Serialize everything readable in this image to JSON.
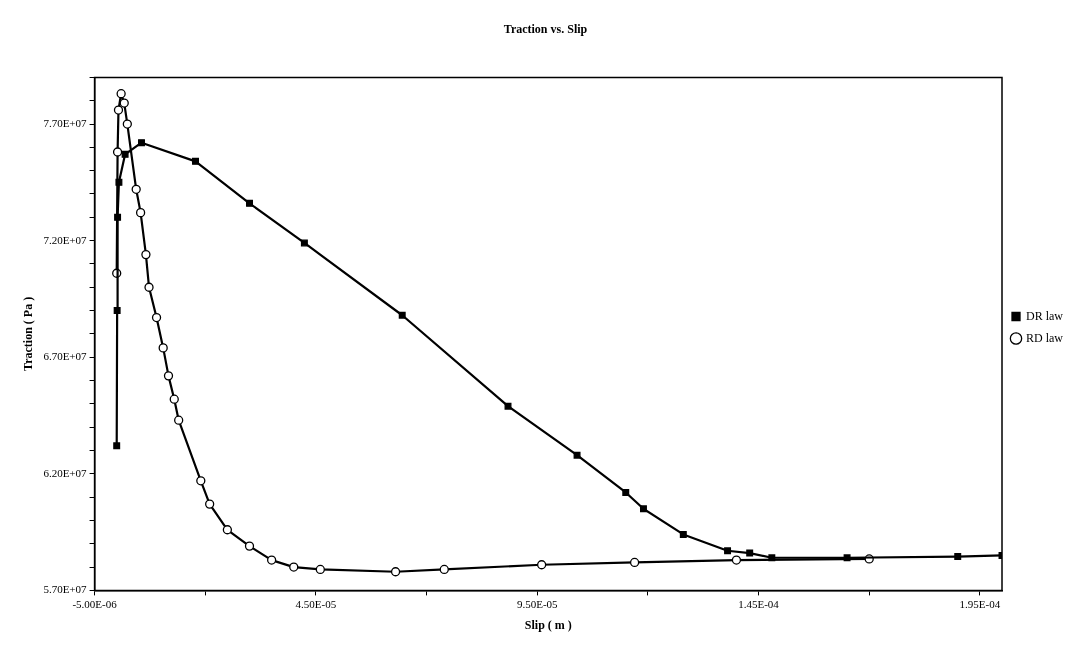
{
  "chart_data": {
    "type": "line",
    "title": "Traction vs. Slip",
    "xlabel": "Slip ( m )",
    "ylabel": "Traction ( Pa )",
    "xlim": [
      -5e-06,
      0.0002
    ],
    "xticks": [
      {
        "value": -5e-06,
        "label": "-5.00E-06"
      },
      {
        "value": 2e-05,
        "label": null
      },
      {
        "value": 4.5e-05,
        "label": "4.50E-05"
      },
      {
        "value": 7e-05,
        "label": null
      },
      {
        "value": 9.5e-05,
        "label": "9.50E-05"
      },
      {
        "value": 0.00012,
        "label": null
      },
      {
        "value": 0.000145,
        "label": "1.45E-04"
      },
      {
        "value": 0.00017,
        "label": null
      },
      {
        "value": 0.000195,
        "label": "1.95E-04"
      }
    ],
    "ylim": [
      57000000.0,
      79000000.0
    ],
    "yticks": [
      {
        "value": 57000000.0,
        "label": "5.70E+07"
      },
      {
        "value": 58000000.0,
        "label": null
      },
      {
        "value": 59000000.0,
        "label": null
      },
      {
        "value": 60000000.0,
        "label": null
      },
      {
        "value": 61000000.0,
        "label": null
      },
      {
        "value": 62000000.0,
        "label": "6.20E+07"
      },
      {
        "value": 63000000.0,
        "label": null
      },
      {
        "value": 64000000.0,
        "label": null
      },
      {
        "value": 65000000.0,
        "label": null
      },
      {
        "value": 66000000.0,
        "label": null
      },
      {
        "value": 67000000.0,
        "label": "6.70E+07"
      },
      {
        "value": 68000000.0,
        "label": null
      },
      {
        "value": 69000000.0,
        "label": null
      },
      {
        "value": 70000000.0,
        "label": null
      },
      {
        "value": 71000000.0,
        "label": null
      },
      {
        "value": 72000000.0,
        "label": "7.20E+07"
      },
      {
        "value": 73000000.0,
        "label": null
      },
      {
        "value": 74000000.0,
        "label": null
      },
      {
        "value": 75000000.0,
        "label": null
      },
      {
        "value": 76000000.0,
        "label": null
      },
      {
        "value": 77000000.0,
        "label": "7.70E+07"
      },
      {
        "value": 78000000.0,
        "label": null
      },
      {
        "value": 79000000.0,
        "label": null
      }
    ],
    "grid": false,
    "legend": "right",
    "line_style": "solid",
    "series": [
      {
        "name": "DR law",
        "color": "#000000",
        "marker": "square",
        "x": [
          0,
          1e-07,
          2e-07,
          5e-07,
          1.9e-06,
          5.6e-06,
          1.78e-05,
          3e-05,
          4.24e-05,
          6.45e-05,
          8.84e-05,
          0.000104,
          0.000115,
          0.000119,
          0.000128,
          0.000138,
          0.000143,
          0.000148,
          0.000165,
          0.00019,
          0.0002
        ],
        "values": [
          63200000.0,
          69000000.0,
          73000000.0,
          74500000.0,
          75700000.0,
          76200000.0,
          75400000.0,
          73600000.0,
          71900000.0,
          68800000.0,
          64900000.0,
          62800000.0,
          61200000.0,
          60500000.0,
          59400000.0,
          58700000.0,
          58600000.0,
          58400000.0,
          58400000.0,
          58450000.0,
          58500000.0
        ]
      },
      {
        "name": "RD law",
        "color": "#000000",
        "marker": "circle",
        "x": [
          0,
          2e-07,
          4e-07,
          1e-06,
          1.7e-06,
          2.4e-06,
          4.4e-06,
          5.4e-06,
          6.6e-06,
          7.3e-06,
          9e-06,
          1.05e-05,
          1.17e-05,
          1.3e-05,
          1.4e-05,
          1.9e-05,
          2.1e-05,
          2.5e-05,
          3e-05,
          3.5e-05,
          4e-05,
          4.6e-05,
          6.3e-05,
          7.4e-05,
          9.6e-05,
          0.000117,
          0.00014,
          0.00017
        ],
        "values": [
          70600000.0,
          75800000.0,
          77600000.0,
          78300000.0,
          77900000.0,
          77000000.0,
          74200000.0,
          73200000.0,
          71400000.0,
          70000000.0,
          68700000.0,
          67400000.0,
          66200000.0,
          65200000.0,
          64300000.0,
          61700000.0,
          60700000.0,
          59600000.0,
          58900000.0,
          58300000.0,
          58000000.0,
          57900000.0,
          57800000.0,
          57900000.0,
          58100000.0,
          58200000.0,
          58300000.0,
          58350000.0
        ]
      }
    ]
  }
}
